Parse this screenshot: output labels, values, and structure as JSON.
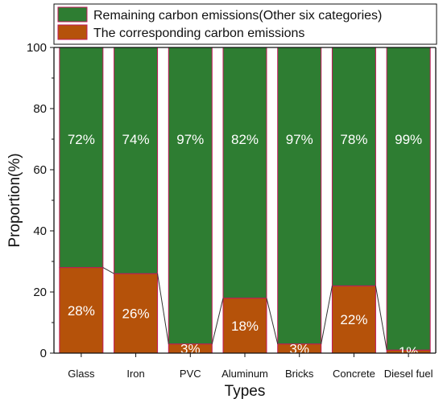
{
  "chart_data": {
    "type": "bar",
    "stacked": true,
    "categories": [
      "Glass",
      "Iron",
      "PVC",
      "Aluminum",
      "Bricks",
      "Concrete",
      "Diesel fuel"
    ],
    "series": [
      {
        "name": "The corresponding carbon emissions",
        "color": "#b5520a",
        "values": [
          28,
          26,
          3,
          18,
          3,
          22,
          1
        ],
        "labels": [
          "28%",
          "26%",
          "3%",
          "18%",
          "3%",
          "22%",
          "1%"
        ]
      },
      {
        "name": "Remaining carbon emissions(Other six categories)",
        "color": "#2e7d32",
        "values": [
          72,
          74,
          97,
          82,
          97,
          78,
          99
        ],
        "labels": [
          "72%",
          "74%",
          "97%",
          "82%",
          "97%",
          "78%",
          "99%"
        ]
      }
    ],
    "xlabel": "Types",
    "ylabel": "Proportion(%)",
    "ylim": [
      0,
      100
    ],
    "yticks": [
      "0",
      "20",
      "40",
      "60",
      "80",
      "100"
    ],
    "legend_position": "top",
    "grid": false,
    "connector_lines": true,
    "bar_border_color": "#c2185b"
  }
}
